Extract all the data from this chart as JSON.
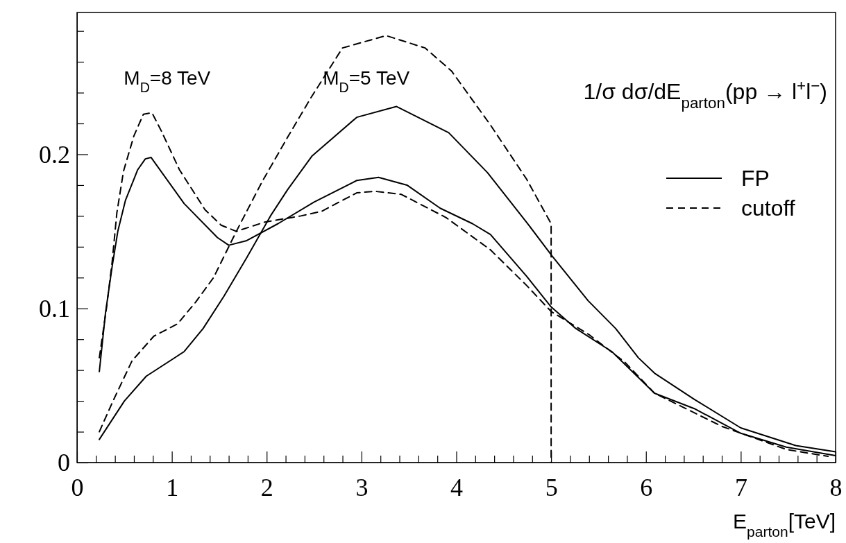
{
  "chart_data": {
    "type": "line",
    "title": "1/σ dσ/dE$_{parton}$(pp → l$^{+}$l$^{−}$)",
    "xlabel": "E$_{parton}$[TeV]",
    "xlim": [
      0,
      8
    ],
    "ylim": [
      0,
      0.292
    ],
    "xticks": [
      0,
      {
        "value": 0.2,
        "label": null
      },
      {
        "value": 0.4,
        "label": null
      },
      {
        "value": 0.6,
        "label": null
      },
      {
        "value": 0.8,
        "label": null
      },
      1,
      {
        "value": 1.2,
        "label": null
      },
      {
        "value": 1.4,
        "label": null
      },
      {
        "value": 1.6,
        "label": null
      },
      {
        "value": 1.8,
        "label": null
      },
      2,
      {
        "value": 2.2,
        "label": null
      },
      {
        "value": 2.4,
        "label": null
      },
      {
        "value": 2.6,
        "label": null
      },
      {
        "value": 2.8,
        "label": null
      },
      3,
      {
        "value": 3.2,
        "label": null
      },
      {
        "value": 3.4,
        "label": null
      },
      {
        "value": 3.6,
        "label": null
      },
      {
        "value": 3.8,
        "label": null
      },
      4,
      {
        "value": 4.2,
        "label": null
      },
      {
        "value": 4.4,
        "label": null
      },
      {
        "value": 4.6,
        "label": null
      },
      {
        "value": 4.8,
        "label": null
      },
      5,
      {
        "value": 5.2,
        "label": null
      },
      {
        "value": 5.4,
        "label": null
      },
      {
        "value": 5.6,
        "label": null
      },
      {
        "value": 5.8,
        "label": null
      },
      6,
      {
        "value": 6.2,
        "label": null
      },
      {
        "value": 6.4,
        "label": null
      },
      {
        "value": 6.6,
        "label": null
      },
      {
        "value": 6.8,
        "label": null
      },
      7,
      {
        "value": 7.2,
        "label": null
      },
      {
        "value": 7.4,
        "label": null
      },
      {
        "value": 7.6,
        "label": null
      },
      {
        "value": 7.8,
        "label": null
      },
      8
    ],
    "yticks": [
      0,
      {
        "value": 0.02,
        "label": null
      },
      {
        "value": 0.04,
        "label": null
      },
      {
        "value": 0.06,
        "label": null
      },
      {
        "value": 0.08,
        "label": null
      },
      0.1,
      {
        "value": 0.12,
        "label": null
      },
      {
        "value": 0.14,
        "label": null
      },
      {
        "value": 0.16,
        "label": null
      },
      {
        "value": 0.18,
        "label": null
      },
      0.2,
      {
        "value": 0.22,
        "label": null
      },
      {
        "value": 0.24,
        "label": null
      },
      {
        "value": 0.26,
        "label": null
      },
      {
        "value": 0.28,
        "label": null
      }
    ],
    "grid": false,
    "legend": "right",
    "marker": "none",
    "annotations": [
      "M$_{D}$=8 TeV",
      "M$_{D}$=5 TeV"
    ],
    "series": [
      {
        "name": "FP",
        "color": "#000000",
        "line_style": "solid",
        "x": [
          0.235,
          0.3,
          0.37,
          0.43,
          0.51,
          0.64,
          0.72,
          0.78,
          1.13,
          1.48,
          1.6,
          1.79,
          2.12,
          2.5,
          2.95,
          3.18,
          3.48,
          3.83,
          4.17,
          4.36,
          4.74,
          5.0,
          5.26,
          5.64,
          6.09,
          6.51,
          7.0,
          7.48,
          8.0
        ],
        "values": [
          0.059,
          0.097,
          0.127,
          0.15,
          0.17,
          0.19,
          0.197,
          0.198,
          0.168,
          0.146,
          0.141,
          0.144,
          0.155,
          0.169,
          0.183,
          0.185,
          0.18,
          0.165,
          0.155,
          0.148,
          0.121,
          0.101,
          0.087,
          0.072,
          0.045,
          0.035,
          0.019,
          0.01,
          0.0045
        ]
      },
      {
        "name": "cutoff",
        "color": "#000000",
        "line_style": "dashed",
        "x": [
          0.235,
          0.31,
          0.37,
          0.42,
          0.49,
          0.6,
          0.7,
          0.79,
          0.89,
          1.08,
          1.35,
          1.52,
          1.68,
          1.98,
          2.36,
          2.58,
          2.95,
          3.14,
          3.42,
          3.89,
          4.36,
          4.74,
          5.0,
          5.4,
          5.78,
          6.09,
          6.8,
          7.48,
          7.92
        ],
        "values": [
          0.068,
          0.1,
          0.13,
          0.162,
          0.189,
          0.212,
          0.226,
          0.227,
          0.215,
          0.19,
          0.164,
          0.154,
          0.15,
          0.156,
          0.16,
          0.163,
          0.175,
          0.176,
          0.174,
          0.159,
          0.138,
          0.115,
          0.098,
          0.083,
          0.065,
          0.045,
          0.0235,
          0.0085,
          0.004
        ]
      },
      {
        "color": "#000000",
        "line_style": "solid",
        "x": [
          0.235,
          0.5,
          0.73,
          1.13,
          1.33,
          1.55,
          1.79,
          2.04,
          2.22,
          2.48,
          2.95,
          3.37,
          3.92,
          4.33,
          4.74,
          5.01,
          5.39,
          5.68,
          5.92,
          6.09,
          6.51,
          7.0,
          7.58,
          8.0
        ],
        "values": [
          0.015,
          0.04,
          0.056,
          0.072,
          0.087,
          0.108,
          0.133,
          0.16,
          0.177,
          0.199,
          0.224,
          0.231,
          0.214,
          0.188,
          0.156,
          0.134,
          0.105,
          0.087,
          0.068,
          0.058,
          0.041,
          0.0225,
          0.011,
          0.007
        ]
      },
      {
        "color": "#000000",
        "line_style": "dashed",
        "x": [
          0.235,
          0.38,
          0.58,
          0.81,
          1.06,
          1.25,
          1.44,
          1.68,
          1.95,
          2.22,
          2.47,
          2.8,
          3.26,
          3.67,
          3.95,
          4.36,
          4.74,
          5.0,
          5.0
        ],
        "values": [
          0.02,
          0.04,
          0.066,
          0.082,
          0.09,
          0.104,
          0.12,
          0.15,
          0.182,
          0.211,
          0.237,
          0.269,
          0.277,
          0.269,
          0.254,
          0.219,
          0.184,
          0.155,
          0
        ]
      }
    ]
  }
}
